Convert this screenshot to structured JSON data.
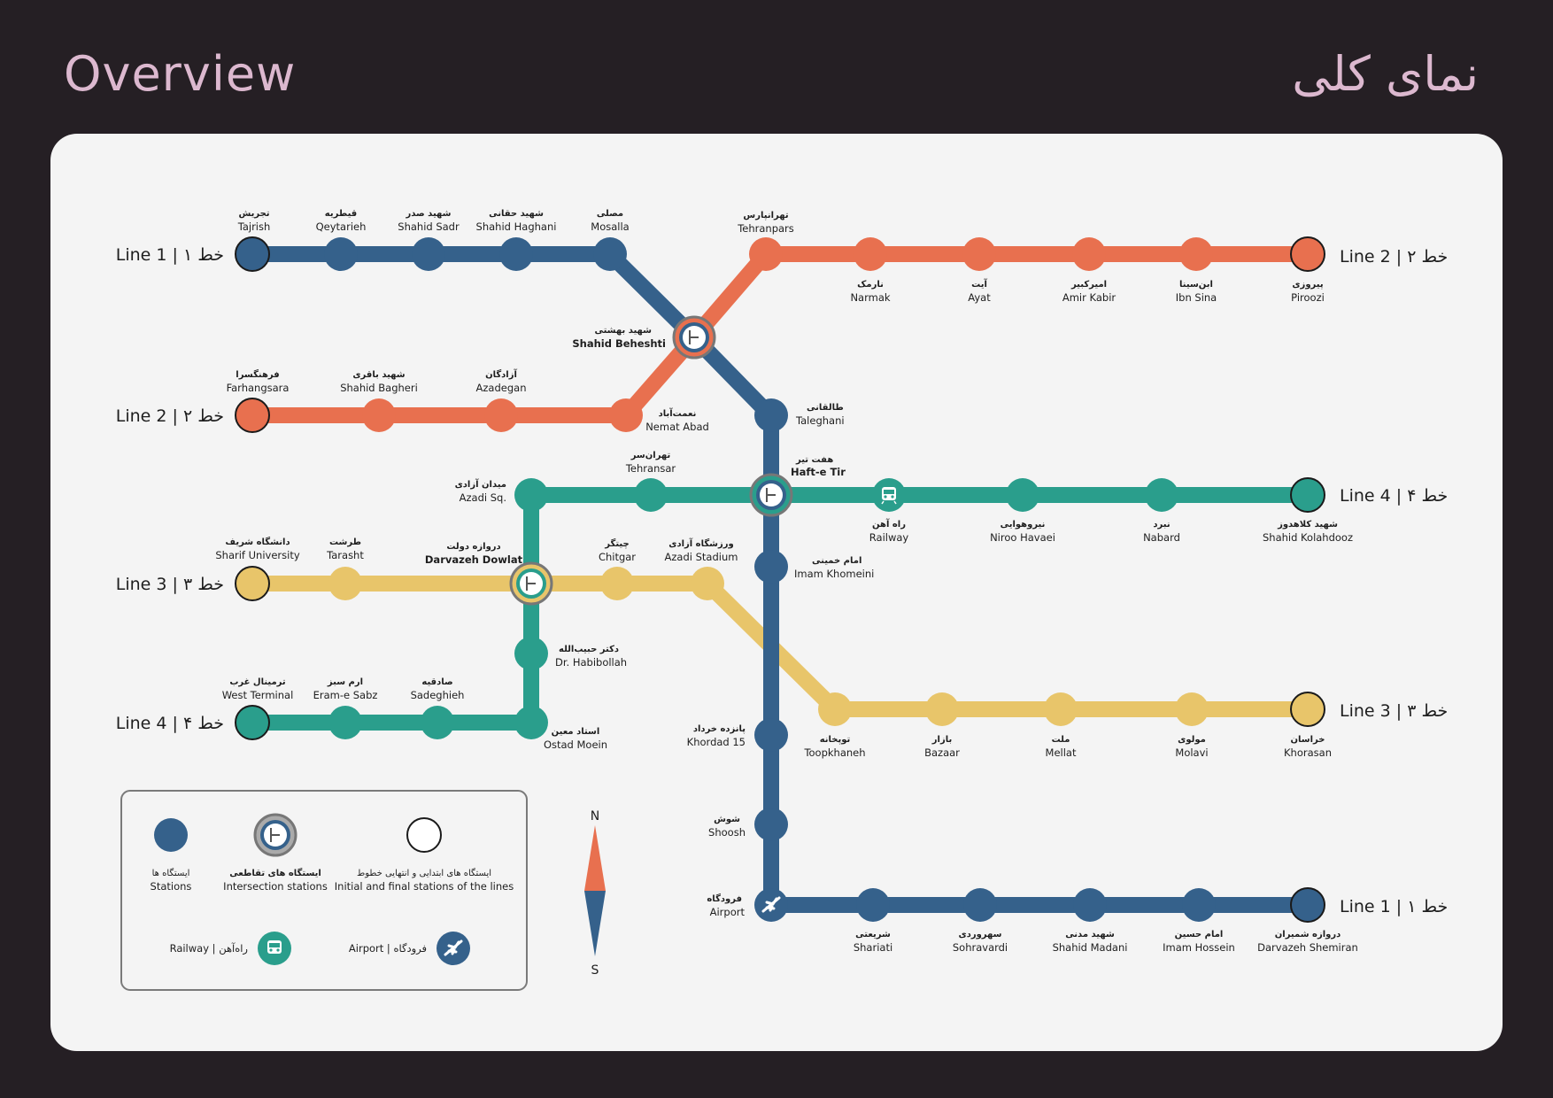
{
  "header": {
    "title_en": "Overview",
    "title_fa": "نمای کلی"
  },
  "colors": {
    "line1": "#35618b",
    "line2": "#e8704f",
    "line3": "#e8c56a",
    "line4": "#2a9e8c",
    "background": "#251f24",
    "card": "#f4f4f4",
    "title": "#dcb8cf"
  },
  "line_labels": [
    {
      "id": "l1-west",
      "text": "Line 1 | ۱ خط"
    },
    {
      "id": "l2-east",
      "text": "Line 2 | ۲ خط"
    },
    {
      "id": "l2-west",
      "text": "Line 2 | ۲ خط"
    },
    {
      "id": "l4-east",
      "text": "Line 4 | ۴ خط"
    },
    {
      "id": "l3-west",
      "text": "Line 3 | ۳ خط"
    },
    {
      "id": "l3-east",
      "text": "Line 3 | ۳ خط"
    },
    {
      "id": "l4-west",
      "text": "Line 4 | ۴ خط"
    },
    {
      "id": "l1-east",
      "text": "Line 1 | ۱ خط"
    }
  ],
  "stations": [
    {
      "fa": "تجریش",
      "en": "Tajrish"
    },
    {
      "fa": "قیطریه",
      "en": "Qeytarieh"
    },
    {
      "fa": "شهید صدر",
      "en": "Shahid Sadr"
    },
    {
      "fa": "شهید حقانی",
      "en": "Shahid Haghani"
    },
    {
      "fa": "مصلی",
      "en": "Mosalla"
    },
    {
      "fa": "تهرانپارس",
      "en": "Tehranpars"
    },
    {
      "fa": "نارمک",
      "en": "Narmak"
    },
    {
      "fa": "آیت",
      "en": "Ayat"
    },
    {
      "fa": "امیرکبیر",
      "en": "Amir Kabir"
    },
    {
      "fa": "ابن‌سینا",
      "en": "Ibn Sina"
    },
    {
      "fa": "پیروزی",
      "en": "Piroozi"
    },
    {
      "fa": "شهید بهشتی",
      "en": "Shahid Beheshti"
    },
    {
      "fa": "فرهنگسرا",
      "en": "Farhangsara"
    },
    {
      "fa": "شهید باقری",
      "en": "Shahid Bagheri"
    },
    {
      "fa": "آزادگان",
      "en": "Azadegan"
    },
    {
      "fa": "نعمت‌آباد",
      "en": "Nemat Abad"
    },
    {
      "fa": "طالقانی",
      "en": "Taleghani"
    },
    {
      "fa": "هفت تیر",
      "en": "Haft-e Tir"
    },
    {
      "fa": "میدان آزادی",
      "en": "Azadi Sq."
    },
    {
      "fa": "تهران‌سر",
      "en": "Tehransar"
    },
    {
      "fa": "راه آهن",
      "en": "Railway"
    },
    {
      "fa": "نیروهوایی",
      "en": "Niroo Havaei"
    },
    {
      "fa": "نبرد",
      "en": "Nabard"
    },
    {
      "fa": "شهید کلاهدوز",
      "en": "Shahid Kolahdooz"
    },
    {
      "fa": "دانشگاه شریف",
      "en": "Sharif University"
    },
    {
      "fa": "طرشت",
      "en": "Tarasht"
    },
    {
      "fa": "دروازه دولت",
      "en": "Darvazeh Dowlat"
    },
    {
      "fa": "چیتگر",
      "en": "Chitgar"
    },
    {
      "fa": "ورزشگاه آزادی",
      "en": "Azadi Stadium"
    },
    {
      "fa": "امام خمینی",
      "en": "Imam Khomeini"
    },
    {
      "fa": "دکتر حبیب‌الله",
      "en": "Dr. Habibollah"
    },
    {
      "fa": "ترمینال غرب",
      "en": "West Terminal"
    },
    {
      "fa": "ارم سبز",
      "en": "Eram-e Sabz"
    },
    {
      "fa": "صادقیه",
      "en": "Sadeghieh"
    },
    {
      "fa": "استاد معین",
      "en": "Ostad Moein"
    },
    {
      "fa": "پانزده خرداد",
      "en": "Khordad 15"
    },
    {
      "fa": "توپخانه",
      "en": "Toopkhaneh"
    },
    {
      "fa": "بازار",
      "en": "Bazaar"
    },
    {
      "fa": "ملت",
      "en": "Mellat"
    },
    {
      "fa": "مولوی",
      "en": "Molavi"
    },
    {
      "fa": "خراسان",
      "en": "Khorasan"
    },
    {
      "fa": "شوش",
      "en": "Shoosh"
    },
    {
      "fa": "فرودگاه",
      "en": "Airport"
    },
    {
      "fa": "شریعتی",
      "en": "Shariati"
    },
    {
      "fa": "سهروردی",
      "en": "Sohravardi"
    },
    {
      "fa": "شهید مدنی",
      "en": "Shahid Madani"
    },
    {
      "fa": "امام حسین",
      "en": "Imam Hossein"
    },
    {
      "fa": "دروازه شمیران",
      "en": "Darvazeh Shemiran"
    }
  ],
  "legend": {
    "stations_fa": "ایستگاه ها",
    "stations_en": "Stations",
    "intersection_fa": "ایستگاه های تقاطعی",
    "intersection_en": "Intersection stations",
    "terminal_fa": "ایستگاه های ابتدایی و انتهایی خطوط",
    "terminal_en": "Initial and final stations of the lines",
    "railway": "Railway | راه‌آهن",
    "airport": "Airport | فرودگاه"
  },
  "compass": {
    "north": "N",
    "south": "S"
  }
}
